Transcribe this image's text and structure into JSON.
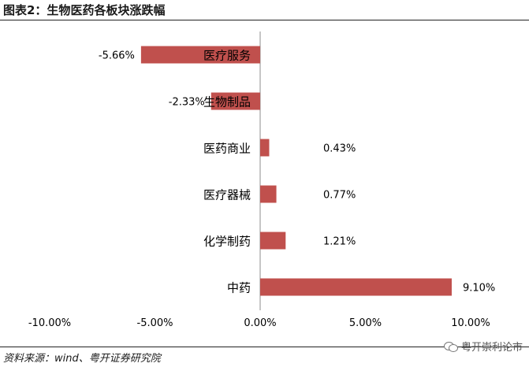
{
  "title": "图表2：生物医药各板块涨跌幅",
  "source": "资料来源：wind、粤开证券研究院",
  "watermark": "粤开崇利论市",
  "chart_data": {
    "type": "bar",
    "orientation": "horizontal",
    "categories": [
      "医疗服务",
      "生物制品",
      "医药商业",
      "医疗器械",
      "化学制药",
      "中药"
    ],
    "values": [
      -5.66,
      -2.33,
      0.43,
      0.77,
      1.21,
      9.1
    ],
    "data_labels": [
      "-5.66%",
      "-2.33%",
      "0.43%",
      "0.77%",
      "1.21%",
      "9.10%"
    ],
    "xlim": [
      -10,
      10
    ],
    "xticks": [
      -10,
      -5,
      0,
      5,
      10
    ],
    "xtick_labels": [
      "-10.00%",
      "-5.00%",
      "0.00%",
      "5.00%",
      "10.00%"
    ],
    "bar_color": "#C0504D",
    "grid": false,
    "legend": false
  }
}
